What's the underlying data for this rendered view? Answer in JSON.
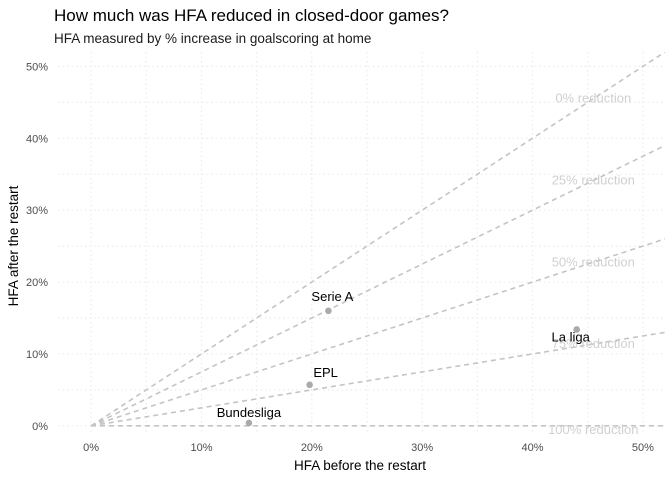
{
  "chart_data": {
    "type": "scatter",
    "title": "How much was HFA reduced in closed-door games?",
    "subtitle": "HFA measured by % increase in goalscoring at home",
    "xlabel": "HFA before the restart",
    "ylabel": "HFA after the restart",
    "xlim": [
      -0.03,
      0.52
    ],
    "ylim": [
      -0.01,
      0.52
    ],
    "x_ticks": [
      0,
      0.1,
      0.2,
      0.3,
      0.4,
      0.5
    ],
    "x_tick_labels": [
      "0%",
      "10%",
      "20%",
      "30%",
      "40%",
      "50%"
    ],
    "y_ticks": [
      0,
      0.1,
      0.2,
      0.3,
      0.4,
      0.5
    ],
    "y_tick_labels": [
      "0%",
      "10%",
      "20%",
      "30%",
      "40%",
      "50%"
    ],
    "grid": true,
    "points": [
      {
        "label": "Serie A",
        "x": 0.215,
        "y": 0.16
      },
      {
        "label": "La liga",
        "x": 0.44,
        "y": 0.134
      },
      {
        "label": "EPL",
        "x": 0.198,
        "y": 0.057
      },
      {
        "label": "Bundesliga",
        "x": 0.143,
        "y": 0.004
      }
    ],
    "reference_lines": [
      {
        "label": "0% reduction",
        "slope": 1.0
      },
      {
        "label": "25% reduction",
        "slope": 0.75
      },
      {
        "label": "50% reduction",
        "slope": 0.5
      },
      {
        "label": "75% reduction",
        "slope": 0.25
      },
      {
        "label": "100% reduction",
        "slope": 0.0
      }
    ],
    "colors": {
      "points": "#aaaaaa",
      "reference_lines": "#c4c4c4",
      "reference_labels": "#d0d0d0",
      "grid": "#ebebeb"
    }
  }
}
